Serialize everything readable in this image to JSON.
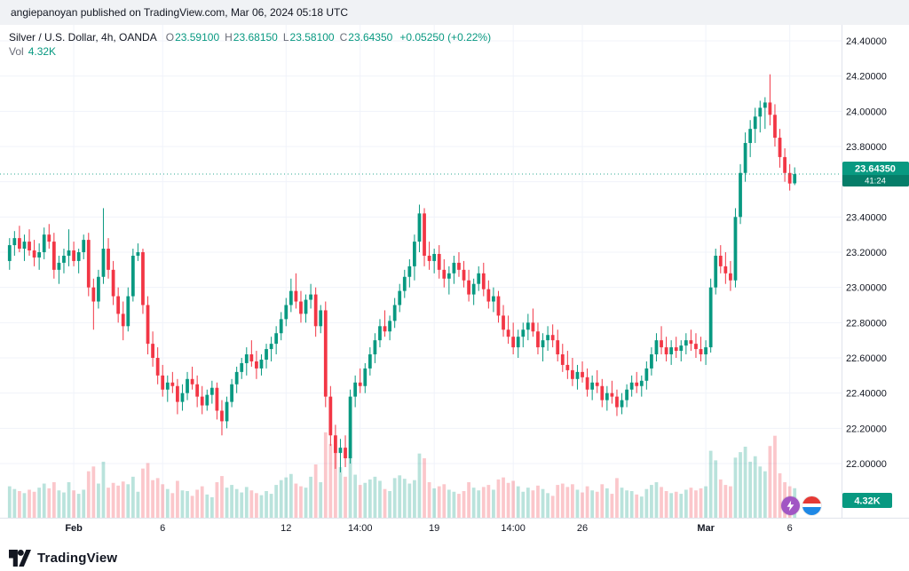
{
  "attribution_bar": {
    "text": "angiepanoyan published on TradingView.com, Mar 06, 2024 05:18 UTC"
  },
  "legend": {
    "symbol_title": "Silver / U.S. Dollar, 4h, OANDA",
    "ohlc_fields": [
      {
        "label": "O",
        "value": "23.59100"
      },
      {
        "label": "H",
        "value": "23.68150"
      },
      {
        "label": "L",
        "value": "23.58100"
      },
      {
        "label": "C",
        "value": "23.64350"
      }
    ],
    "change_text": "+0.05250 (+0.22%)",
    "volume_label": "Vol",
    "volume_value": "4.32K"
  },
  "price_scale": {
    "labels": [
      "24.40000",
      "24.20000",
      "24.00000",
      "23.80000",
      "23.60000",
      "23.40000",
      "23.20000",
      "23.00000",
      "22.80000",
      "22.60000",
      "22.40000",
      "22.20000",
      "22.00000"
    ],
    "price_badge": {
      "price": "23.64350",
      "countdown": "41:24"
    },
    "volume_badge": "4.32K"
  },
  "time_axis": {
    "ticks": [
      {
        "label": "Feb",
        "index": 13,
        "major": true
      },
      {
        "label": "6",
        "index": 31,
        "major": false
      },
      {
        "label": "12",
        "index": 56,
        "major": false
      },
      {
        "label": "14:00",
        "index": 71,
        "major": false
      },
      {
        "label": "19",
        "index": 86,
        "major": false
      },
      {
        "label": "14:00",
        "index": 102,
        "major": false
      },
      {
        "label": "26",
        "index": 116,
        "major": false
      },
      {
        "label": "Mar",
        "index": 141,
        "major": true
      },
      {
        "label": "6",
        "index": 158,
        "major": false
      }
    ]
  },
  "footer": {
    "brand": "TradingView"
  },
  "reactions": [
    {
      "icon": "lightning-reaction-icon"
    },
    {
      "icon": "flag-reaction-icon"
    }
  ],
  "colors": {
    "up": "#089981",
    "down": "#F23645",
    "grid": "#f0f3fa",
    "axis": "#e0e3eb",
    "text": "#131722",
    "muted": "#787b86",
    "badge_text": "#ffffff"
  },
  "chart_data": {
    "type": "candlestick",
    "symbol": "Silver / U.S. Dollar",
    "interval": "4h",
    "exchange": "OANDA",
    "last_bar": {
      "open": 23.591,
      "high": 23.6815,
      "low": 23.581,
      "close": 23.6435,
      "change": 0.0525,
      "change_pct": 0.22,
      "volume_k": 4.32
    },
    "y_axis": {
      "min": 22.0,
      "max": 24.4,
      "step": 0.2
    },
    "volume_axis": {
      "max_k": 13
    },
    "candles": [
      [
        23.15,
        23.28,
        23.1,
        23.24,
        4.6
      ],
      [
        23.24,
        23.32,
        23.18,
        23.28,
        4.2
      ],
      [
        23.28,
        23.35,
        23.2,
        23.22,
        3.9
      ],
      [
        23.22,
        23.3,
        23.15,
        23.26,
        3.6
      ],
      [
        23.26,
        23.33,
        23.18,
        23.21,
        4.1
      ],
      [
        23.21,
        23.27,
        23.12,
        23.17,
        3.8
      ],
      [
        23.17,
        23.25,
        23.1,
        23.2,
        4.4
      ],
      [
        23.2,
        23.34,
        23.16,
        23.3,
        5.0
      ],
      [
        23.3,
        23.36,
        23.22,
        23.26,
        4.3
      ],
      [
        23.26,
        23.31,
        23.05,
        23.1,
        5.2
      ],
      [
        23.1,
        23.18,
        23.02,
        23.14,
        4.0
      ],
      [
        23.14,
        23.22,
        23.08,
        23.18,
        3.7
      ],
      [
        23.18,
        23.33,
        23.12,
        23.21,
        5.2
      ],
      [
        23.21,
        23.26,
        23.12,
        23.15,
        4.0
      ],
      [
        23.15,
        23.22,
        23.08,
        23.2,
        3.5
      ],
      [
        23.2,
        23.3,
        23.16,
        23.27,
        4.1
      ],
      [
        23.27,
        23.31,
        22.95,
        23.0,
        6.8
      ],
      [
        23.0,
        23.05,
        22.76,
        22.92,
        7.5
      ],
      [
        22.92,
        23.1,
        22.88,
        23.06,
        5.0
      ],
      [
        23.06,
        23.45,
        23.02,
        23.22,
        8.2
      ],
      [
        23.22,
        23.28,
        23.05,
        23.1,
        4.4
      ],
      [
        23.1,
        23.15,
        22.9,
        22.95,
        5.1
      ],
      [
        22.95,
        23.0,
        22.8,
        22.85,
        4.7
      ],
      [
        22.85,
        22.92,
        22.7,
        22.78,
        5.3
      ],
      [
        22.78,
        23.0,
        22.75,
        22.95,
        4.9
      ],
      [
        22.95,
        23.22,
        22.92,
        23.18,
        6.0
      ],
      [
        23.18,
        23.25,
        23.15,
        23.2,
        3.8
      ],
      [
        23.2,
        23.22,
        22.85,
        22.9,
        7.2
      ],
      [
        22.9,
        22.95,
        22.62,
        22.68,
        8.0
      ],
      [
        22.68,
        22.75,
        22.55,
        22.6,
        5.5
      ],
      [
        22.6,
        22.66,
        22.45,
        22.5,
        5.8
      ],
      [
        22.5,
        22.56,
        22.38,
        22.42,
        4.9
      ],
      [
        22.42,
        22.5,
        22.35,
        22.46,
        4.2
      ],
      [
        22.46,
        22.52,
        22.4,
        22.44,
        3.6
      ],
      [
        22.44,
        22.48,
        22.28,
        22.35,
        5.4
      ],
      [
        22.35,
        22.45,
        22.3,
        22.4,
        4.0
      ],
      [
        22.4,
        22.52,
        22.36,
        22.48,
        3.9
      ],
      [
        22.48,
        22.55,
        22.42,
        22.45,
        3.2
      ],
      [
        22.45,
        22.5,
        22.32,
        22.38,
        4.1
      ],
      [
        22.38,
        22.44,
        22.28,
        22.33,
        4.6
      ],
      [
        22.33,
        22.42,
        22.3,
        22.39,
        3.4
      ],
      [
        22.39,
        22.47,
        22.34,
        22.43,
        3.0
      ],
      [
        22.43,
        22.46,
        22.25,
        22.3,
        5.2
      ],
      [
        22.3,
        22.36,
        22.16,
        22.24,
        6.1
      ],
      [
        22.24,
        22.38,
        22.2,
        22.35,
        4.4
      ],
      [
        22.35,
        22.48,
        22.32,
        22.45,
        4.8
      ],
      [
        22.45,
        22.55,
        22.4,
        22.52,
        4.2
      ],
      [
        22.52,
        22.6,
        22.48,
        22.57,
        3.7
      ],
      [
        22.57,
        22.66,
        22.5,
        22.62,
        4.5
      ],
      [
        22.62,
        22.7,
        22.55,
        22.58,
        4.0
      ],
      [
        22.58,
        22.64,
        22.48,
        22.54,
        3.6
      ],
      [
        22.54,
        22.62,
        22.5,
        22.59,
        3.3
      ],
      [
        22.59,
        22.68,
        22.54,
        22.65,
        3.9
      ],
      [
        22.65,
        22.72,
        22.58,
        22.68,
        3.5
      ],
      [
        22.68,
        22.78,
        22.62,
        22.74,
        4.8
      ],
      [
        22.74,
        22.86,
        22.7,
        22.82,
        5.5
      ],
      [
        22.82,
        22.94,
        22.78,
        22.9,
        5.9
      ],
      [
        22.9,
        23.05,
        22.86,
        22.98,
        6.4
      ],
      [
        22.98,
        23.08,
        22.88,
        22.92,
        5.0
      ],
      [
        22.92,
        22.98,
        22.8,
        22.85,
        4.6
      ],
      [
        22.85,
        22.96,
        22.8,
        22.93,
        4.4
      ],
      [
        22.93,
        23.02,
        22.88,
        22.96,
        6.0
      ],
      [
        22.96,
        23.0,
        22.72,
        22.78,
        7.8
      ],
      [
        22.78,
        22.9,
        22.74,
        22.87,
        5.2
      ],
      [
        22.87,
        22.92,
        22.32,
        22.38,
        12.5
      ],
      [
        22.38,
        22.44,
        22.1,
        22.16,
        10.8
      ],
      [
        22.16,
        22.22,
        21.97,
        22.06,
        9.6
      ],
      [
        22.06,
        22.14,
        21.95,
        22.09,
        7.4
      ],
      [
        22.09,
        22.16,
        21.98,
        22.03,
        6.0
      ],
      [
        22.03,
        22.42,
        22.0,
        22.38,
        8.9
      ],
      [
        22.38,
        22.5,
        22.32,
        22.46,
        6.3
      ],
      [
        22.46,
        22.54,
        22.4,
        22.44,
        4.8
      ],
      [
        22.44,
        22.57,
        22.4,
        22.54,
        5.1
      ],
      [
        22.54,
        22.66,
        22.5,
        22.62,
        5.6
      ],
      [
        22.62,
        22.74,
        22.57,
        22.7,
        6.0
      ],
      [
        22.7,
        22.82,
        22.66,
        22.78,
        5.4
      ],
      [
        22.78,
        22.87,
        22.72,
        22.75,
        4.2
      ],
      [
        22.75,
        22.84,
        22.7,
        22.81,
        3.9
      ],
      [
        22.81,
        22.94,
        22.77,
        22.9,
        5.8
      ],
      [
        22.9,
        23.02,
        22.86,
        22.98,
        6.2
      ],
      [
        22.98,
        23.1,
        22.94,
        23.06,
        5.7
      ],
      [
        23.06,
        23.16,
        23.0,
        23.12,
        5.0
      ],
      [
        23.12,
        23.3,
        23.04,
        23.26,
        5.5
      ],
      [
        23.26,
        23.47,
        23.2,
        23.42,
        9.4
      ],
      [
        23.42,
        23.45,
        23.12,
        23.18,
        8.7
      ],
      [
        23.18,
        23.26,
        23.1,
        23.15,
        5.2
      ],
      [
        23.15,
        23.22,
        23.08,
        23.19,
        4.3
      ],
      [
        23.19,
        23.24,
        23.05,
        23.1,
        4.6
      ],
      [
        23.1,
        23.16,
        23.0,
        23.05,
        4.9
      ],
      [
        23.05,
        23.12,
        22.96,
        23.08,
        4.1
      ],
      [
        23.08,
        23.18,
        23.02,
        23.14,
        3.8
      ],
      [
        23.14,
        23.2,
        23.06,
        23.1,
        3.5
      ],
      [
        23.1,
        23.15,
        23.0,
        23.04,
        3.9
      ],
      [
        23.04,
        23.1,
        22.92,
        22.96,
        5.2
      ],
      [
        22.96,
        23.05,
        22.9,
        23.02,
        4.4
      ],
      [
        23.02,
        23.12,
        22.98,
        23.08,
        4.0
      ],
      [
        23.08,
        23.14,
        22.95,
        22.99,
        4.5
      ],
      [
        22.99,
        23.04,
        22.88,
        22.92,
        4.8
      ],
      [
        22.92,
        23.0,
        22.86,
        22.95,
        4.1
      ],
      [
        22.95,
        22.98,
        22.8,
        22.84,
        5.6
      ],
      [
        22.84,
        22.9,
        22.72,
        22.76,
        5.9
      ],
      [
        22.76,
        22.84,
        22.68,
        22.72,
        5.1
      ],
      [
        22.72,
        22.8,
        22.62,
        22.66,
        5.4
      ],
      [
        22.66,
        22.76,
        22.6,
        22.72,
        4.6
      ],
      [
        22.72,
        22.8,
        22.66,
        22.76,
        3.8
      ],
      [
        22.76,
        22.85,
        22.7,
        22.8,
        4.4
      ],
      [
        22.8,
        22.88,
        22.72,
        22.75,
        4.0
      ],
      [
        22.75,
        22.8,
        22.62,
        22.66,
        4.7
      ],
      [
        22.66,
        22.74,
        22.58,
        22.7,
        4.2
      ],
      [
        22.7,
        22.78,
        22.64,
        22.73,
        3.6
      ],
      [
        22.73,
        22.79,
        22.66,
        22.7,
        3.2
      ],
      [
        22.7,
        22.76,
        22.58,
        22.62,
        4.8
      ],
      [
        22.62,
        22.68,
        22.52,
        22.56,
        5.0
      ],
      [
        22.56,
        22.64,
        22.48,
        22.53,
        4.5
      ],
      [
        22.53,
        22.6,
        22.44,
        22.48,
        4.9
      ],
      [
        22.48,
        22.56,
        22.42,
        22.52,
        4.1
      ],
      [
        22.52,
        22.58,
        22.46,
        22.49,
        3.7
      ],
      [
        22.49,
        22.54,
        22.38,
        22.42,
        4.6
      ],
      [
        22.42,
        22.5,
        22.36,
        22.46,
        4.0
      ],
      [
        22.46,
        22.53,
        22.4,
        22.44,
        3.8
      ],
      [
        22.44,
        22.48,
        22.32,
        22.36,
        4.9
      ],
      [
        22.36,
        22.44,
        22.3,
        22.4,
        4.3
      ],
      [
        22.4,
        22.47,
        22.34,
        22.38,
        3.5
      ],
      [
        22.38,
        22.42,
        22.27,
        22.32,
        5.8
      ],
      [
        22.32,
        22.4,
        22.28,
        22.36,
        4.4
      ],
      [
        22.36,
        22.45,
        22.32,
        22.42,
        4.0
      ],
      [
        22.42,
        22.5,
        22.38,
        22.46,
        3.9
      ],
      [
        22.46,
        22.52,
        22.4,
        22.44,
        3.4
      ],
      [
        22.44,
        22.5,
        22.38,
        22.47,
        3.1
      ],
      [
        22.47,
        22.58,
        22.42,
        22.54,
        4.2
      ],
      [
        22.54,
        22.66,
        22.5,
        22.62,
        4.8
      ],
      [
        22.62,
        22.74,
        22.58,
        22.7,
        5.2
      ],
      [
        22.7,
        22.78,
        22.62,
        22.66,
        4.5
      ],
      [
        22.66,
        22.72,
        22.58,
        22.62,
        3.9
      ],
      [
        22.62,
        22.7,
        22.56,
        22.66,
        3.6
      ],
      [
        22.66,
        22.72,
        22.6,
        22.64,
        3.8
      ],
      [
        22.64,
        22.7,
        22.58,
        22.67,
        3.5
      ],
      [
        22.67,
        22.74,
        22.62,
        22.7,
        4.1
      ],
      [
        22.7,
        22.76,
        22.64,
        22.68,
        4.4
      ],
      [
        22.68,
        22.74,
        22.6,
        22.65,
        4.0
      ],
      [
        22.65,
        22.72,
        22.58,
        22.62,
        4.3
      ],
      [
        22.62,
        22.7,
        22.56,
        22.66,
        4.6
      ],
      [
        22.66,
        23.05,
        22.63,
        23.0,
        9.8
      ],
      [
        23.0,
        23.22,
        22.96,
        23.18,
        8.4
      ],
      [
        23.18,
        23.24,
        23.08,
        23.12,
        5.6
      ],
      [
        23.12,
        23.2,
        23.02,
        23.08,
        4.8
      ],
      [
        23.08,
        23.15,
        22.98,
        23.04,
        4.6
      ],
      [
        23.04,
        23.45,
        23.0,
        23.4,
        8.8
      ],
      [
        23.4,
        23.7,
        23.36,
        23.65,
        9.6
      ],
      [
        23.65,
        23.88,
        23.6,
        23.82,
        10.4
      ],
      [
        23.82,
        23.95,
        23.74,
        23.9,
        8.2
      ],
      [
        23.9,
        24.02,
        23.82,
        23.97,
        9.0
      ],
      [
        23.97,
        24.06,
        23.88,
        24.02,
        7.5
      ],
      [
        24.02,
        24.08,
        23.9,
        24.05,
        6.8
      ],
      [
        24.05,
        24.21,
        23.92,
        23.98,
        10.5
      ],
      [
        23.98,
        24.04,
        23.8,
        23.85,
        12.0
      ],
      [
        23.85,
        23.9,
        23.68,
        23.74,
        6.5
      ],
      [
        23.74,
        23.79,
        23.6,
        23.65,
        5.2
      ],
      [
        23.65,
        23.7,
        23.55,
        23.59,
        4.6
      ],
      [
        23.591,
        23.6815,
        23.581,
        23.6435,
        4.32
      ]
    ]
  }
}
